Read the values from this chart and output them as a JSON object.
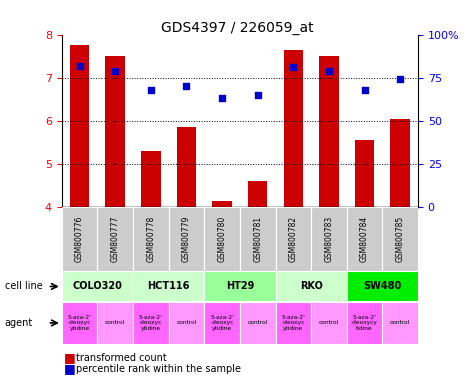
{
  "title": "GDS4397 / 226059_at",
  "samples": [
    "GSM800776",
    "GSM800777",
    "GSM800778",
    "GSM800779",
    "GSM800780",
    "GSM800781",
    "GSM800782",
    "GSM800783",
    "GSM800784",
    "GSM800785"
  ],
  "bar_values": [
    7.75,
    7.5,
    5.3,
    5.85,
    4.15,
    4.6,
    7.65,
    7.5,
    5.55,
    6.05
  ],
  "dot_values": [
    82,
    79,
    68,
    70,
    63,
    65,
    81,
    79,
    68,
    74
  ],
  "ylim_left": [
    4,
    8
  ],
  "ylim_right": [
    0,
    100
  ],
  "yticks_left": [
    4,
    5,
    6,
    7,
    8
  ],
  "yticks_right": [
    0,
    25,
    50,
    75,
    100
  ],
  "ytick_labels_right": [
    "0",
    "25",
    "50",
    "75",
    "100%"
  ],
  "bar_color": "#cc0000",
  "dot_color": "#0000cc",
  "cell_lines": [
    {
      "name": "COLO320",
      "start": 0,
      "end": 2,
      "color": "#ccffcc"
    },
    {
      "name": "HCT116",
      "start": 2,
      "end": 4,
      "color": "#ccffcc"
    },
    {
      "name": "HT29",
      "start": 4,
      "end": 6,
      "color": "#99ff99"
    },
    {
      "name": "RKO",
      "start": 6,
      "end": 8,
      "color": "#ccffcc"
    },
    {
      "name": "SW480",
      "start": 8,
      "end": 10,
      "color": "#00ee00"
    }
  ],
  "agents": [
    {
      "name": "5-aza-2'\n-deoxyc\nytidine",
      "start": 0,
      "end": 1,
      "color": "#ff66ff"
    },
    {
      "name": "control",
      "start": 1,
      "end": 2,
      "color": "#ff99ff"
    },
    {
      "name": "5-aza-2'\n-deoxyc\nytidine",
      "start": 2,
      "end": 3,
      "color": "#ff66ff"
    },
    {
      "name": "control",
      "start": 3,
      "end": 4,
      "color": "#ff99ff"
    },
    {
      "name": "5-aza-2'\n-deoxyc\nytidine",
      "start": 4,
      "end": 5,
      "color": "#ff66ff"
    },
    {
      "name": "control",
      "start": 5,
      "end": 6,
      "color": "#ff99ff"
    },
    {
      "name": "5-aza-2'\n-deoxyc\nytidine",
      "start": 6,
      "end": 7,
      "color": "#ff66ff"
    },
    {
      "name": "control",
      "start": 7,
      "end": 8,
      "color": "#ff99ff"
    },
    {
      "name": "5-aza-2'\n-deoxycy\ntidine",
      "start": 8,
      "end": 9,
      "color": "#ff66ff"
    },
    {
      "name": "control",
      "start": 9,
      "end": 10,
      "color": "#ff99ff"
    }
  ],
  "sample_bg_color": "#cccccc",
  "legend_red": "transformed count",
  "legend_blue": "percentile rank within the sample",
  "cell_line_label": "cell line",
  "agent_label": "agent"
}
